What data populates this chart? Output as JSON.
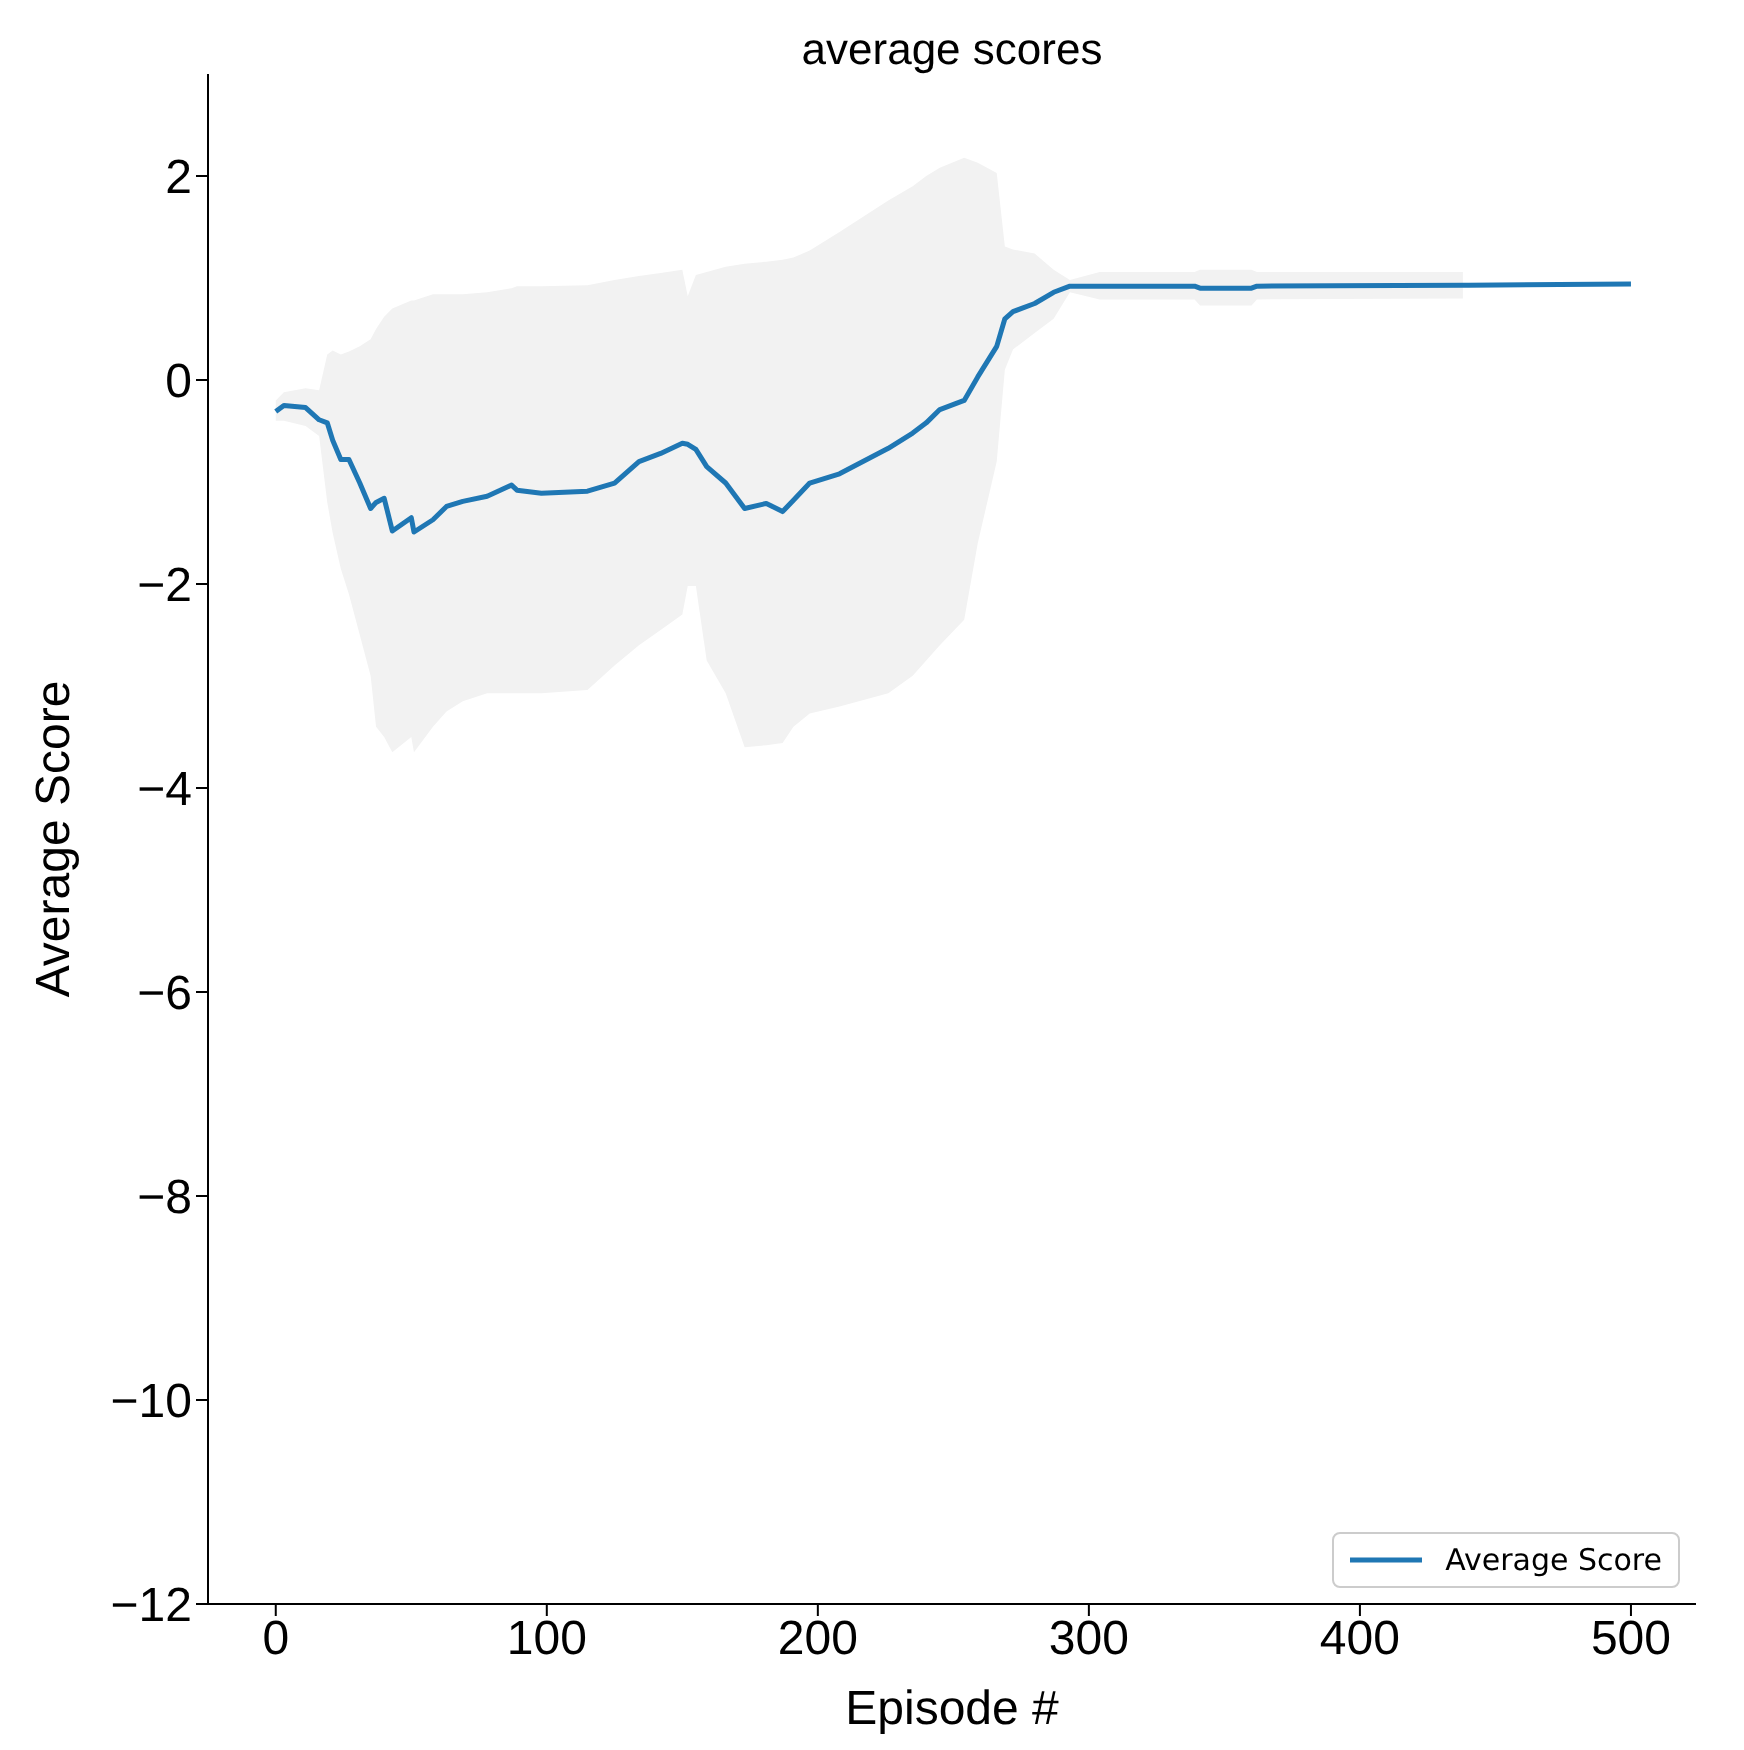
{
  "chart_data": {
    "type": "line",
    "title": "average scores",
    "xlabel": "Episode #",
    "ylabel": "Average Score",
    "x": [
      0,
      3,
      11,
      16,
      19,
      21,
      24,
      27,
      31,
      35,
      37,
      40,
      43,
      50,
      51,
      58,
      63,
      69,
      78,
      87,
      89,
      98,
      115,
      125,
      134,
      142,
      150,
      152,
      155,
      159,
      166,
      173,
      181,
      187,
      191,
      197,
      208,
      226,
      235,
      240,
      245,
      254,
      259,
      266,
      269,
      272,
      280,
      287,
      293,
      304,
      339,
      341,
      360,
      362,
      438,
      440,
      500
    ],
    "series": [
      {
        "name": "Average Score",
        "color": "#1f77b4",
        "values": [
          -0.31,
          -0.25,
          -0.27,
          -0.39,
          -0.42,
          -0.59,
          -0.78,
          -0.78,
          -1.01,
          -1.26,
          -1.2,
          -1.16,
          -1.48,
          -1.35,
          -1.49,
          -1.37,
          -1.24,
          -1.19,
          -1.14,
          -1.03,
          -1.08,
          -1.11,
          -1.09,
          -1.01,
          -0.8,
          -0.72,
          -0.62,
          -0.63,
          -0.68,
          -0.85,
          -1.01,
          -1.26,
          -1.21,
          -1.29,
          -1.18,
          -1.01,
          -0.92,
          -0.67,
          -0.52,
          -0.42,
          -0.29,
          -0.2,
          0.03,
          0.33,
          0.6,
          0.67,
          0.75,
          0.86,
          0.92,
          0.92,
          0.92,
          0.9,
          0.9,
          0.92,
          0.93,
          0.93,
          0.94
        ],
        "lower": [
          -0.4,
          -0.4,
          -0.45,
          -0.55,
          -1.2,
          -1.5,
          -1.85,
          -2.1,
          -2.5,
          -2.9,
          -3.4,
          -3.5,
          -3.65,
          -3.5,
          -3.65,
          -3.4,
          -3.25,
          -3.15,
          -3.07,
          -3.07,
          -3.07,
          -3.07,
          -3.04,
          -2.8,
          -2.6,
          -2.45,
          -2.3,
          -2.02,
          -2.02,
          -2.75,
          -3.07,
          -3.6,
          -3.58,
          -3.56,
          -3.4,
          -3.27,
          -3.2,
          -3.07,
          -2.9,
          -2.75,
          -2.6,
          -2.35,
          -1.6,
          -0.8,
          0.1,
          0.3,
          0.46,
          0.6,
          0.86,
          0.79,
          0.79,
          0.73,
          0.73,
          0.79,
          0.8,
          null,
          null
        ],
        "upper": [
          -0.2,
          -0.12,
          -0.08,
          -0.1,
          0.25,
          0.29,
          0.25,
          0.28,
          0.33,
          0.4,
          0.5,
          0.62,
          0.7,
          0.78,
          0.78,
          0.84,
          0.84,
          0.84,
          0.86,
          0.9,
          0.92,
          0.92,
          0.93,
          0.98,
          1.02,
          1.05,
          1.08,
          0.82,
          1.03,
          1.06,
          1.11,
          1.14,
          1.16,
          1.18,
          1.2,
          1.27,
          1.45,
          1.76,
          1.9,
          2.0,
          2.08,
          2.18,
          2.13,
          2.03,
          1.31,
          1.28,
          1.24,
          1.08,
          0.98,
          1.06,
          1.06,
          1.08,
          1.08,
          1.06,
          1.06,
          null,
          null
        ]
      }
    ],
    "xlim": [
      -25,
      524
    ],
    "xticks": [
      0,
      100,
      200,
      300,
      400,
      500
    ],
    "ylim": [
      -12,
      3
    ],
    "yticks": [
      -12,
      -10,
      -8,
      -6,
      -4,
      -2,
      0,
      2
    ],
    "grid": false,
    "legend": "bottom right",
    "line_style": "solid",
    "marker": "none"
  }
}
